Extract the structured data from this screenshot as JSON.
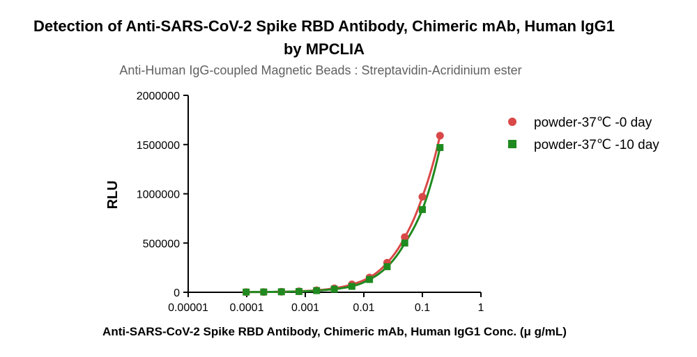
{
  "chart_data": {
    "type": "scatter",
    "title_line1": "Detection of Anti-SARS-CoV-2 Spike RBD Antibody, Chimeric mAb, Human IgG1",
    "title_line2": "by MPCLIA",
    "subtitle": "Anti-Human IgG-coupled Magnetic Beads : Streptavidin-Acridinium ester",
    "xlabel": "Anti-SARS-CoV-2 Spike RBD Antibody, Chimeric mAb, Human IgG1 Conc. (μ g/mL)",
    "ylabel": "RLU",
    "x_scale": "log",
    "xlim": [
      1e-05,
      1
    ],
    "ylim": [
      0,
      2000000
    ],
    "x_ticks": [
      1e-05,
      0.0001,
      0.001,
      0.01,
      0.1,
      1
    ],
    "x_tick_labels": [
      "0.00001",
      "0.0001",
      "0.001",
      "0.01",
      "0.1",
      "1"
    ],
    "y_ticks": [
      0,
      500000,
      1000000,
      1500000,
      2000000
    ],
    "y_tick_labels": [
      "0",
      "500000",
      "1000000",
      "1500000",
      "2000000"
    ],
    "grid": false,
    "legend_position": "top-right",
    "series": [
      {
        "name": "powder-37℃ -0 day",
        "color": "#d94848",
        "marker": "circle",
        "x": [
          9.77e-05,
          0.000195,
          0.000391,
          0.000781,
          0.00156,
          0.00313,
          0.00625,
          0.0125,
          0.025,
          0.05,
          0.1,
          0.2
        ],
        "y": [
          2000,
          3000,
          5000,
          10000,
          20000,
          40000,
          80000,
          150000,
          300000,
          560000,
          970000,
          1590000
        ]
      },
      {
        "name": "powder-37℃ -10 day",
        "color": "#1f8a1f",
        "marker": "square",
        "x": [
          9.77e-05,
          0.000195,
          0.000391,
          0.000781,
          0.00156,
          0.00313,
          0.00625,
          0.0125,
          0.025,
          0.05,
          0.1,
          0.2
        ],
        "y": [
          2000,
          3000,
          5000,
          8000,
          17000,
          32000,
          60000,
          130000,
          260000,
          500000,
          840000,
          1470000
        ]
      }
    ]
  }
}
